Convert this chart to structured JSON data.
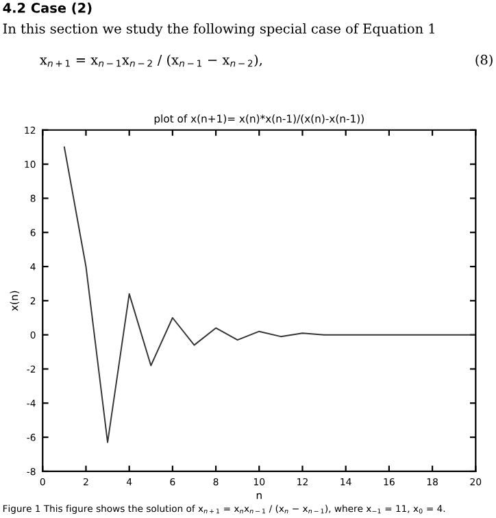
{
  "chart_data": {
    "type": "line",
    "title": "plot of x(n+1)= x(n)*x(n-1)/(x(n)-x(n-1))",
    "xlabel": "n",
    "ylabel": "x(n)",
    "x": [
      1,
      2,
      3,
      4,
      5,
      6,
      7,
      8,
      9,
      10,
      11,
      12,
      13,
      14,
      15,
      16,
      17,
      18,
      19,
      20
    ],
    "series": [
      {
        "color": "#333333",
        "values": [
          11,
          4,
          -6.3,
          2.4,
          -1.8,
          1,
          -0.6,
          0.4,
          -0.3,
          0.2,
          -0.1,
          0.1,
          0,
          0,
          0,
          0,
          0,
          0,
          0,
          0
        ]
      }
    ],
    "xlim": [
      0,
      20
    ],
    "xticks": [
      0,
      2,
      4,
      6,
      8,
      10,
      12,
      14,
      16,
      18,
      20
    ],
    "ylim": [
      -8,
      12
    ],
    "yticks": [
      -8,
      -6,
      -4,
      -2,
      0,
      2,
      4,
      6,
      8,
      10,
      12
    ],
    "grid": false,
    "legend": false,
    "marker": "none",
    "line_style": "solid",
    "annotations": [
      "4.2 Case (2)",
      "In this section we study the following special case of Equation 1",
      "x$_{n+1}$ = x$_{n−1}$x$_{n−2}$ / (x$_{n−1}$ − x$_{n−2}$),",
      "(8)",
      "Figure 1 This figure shows the solution of x$_{n+1}$ = x$_{n}$x$_{n−1}$ / (x$_{n}$ − x$_{n−1}$), where x$_{−1}$ = 11, x$_{0}$ = 4."
    ]
  }
}
